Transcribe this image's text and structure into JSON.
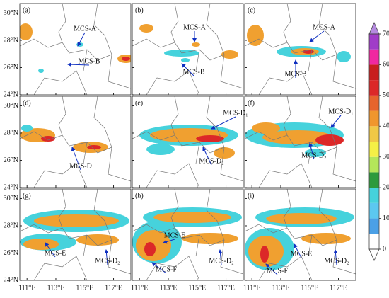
{
  "map": {
    "lon_range": [
      110.5,
      118.2
    ],
    "lat_range": [
      24,
      30.7
    ],
    "lat_ticks": [
      {
        "value": 30,
        "label": "30°N"
      },
      {
        "value": 28,
        "label": "28°N"
      },
      {
        "value": 26,
        "label": "26°N"
      },
      {
        "value": 24,
        "label": "24°N"
      }
    ],
    "lon_ticks": [
      {
        "value": 111,
        "label": "111°E"
      },
      {
        "value": 113,
        "label": "113°E"
      },
      {
        "value": 115,
        "label": "115°E"
      },
      {
        "value": 117,
        "label": "117°E"
      }
    ],
    "panels": [
      {
        "label": "(a)",
        "annotations": [
          "MCS-A",
          "MCS-B"
        ]
      },
      {
        "label": "(b)",
        "annotations": [
          "MCS-A",
          "MCS-B"
        ]
      },
      {
        "label": "(c)",
        "annotations": [
          "MCS-A",
          "MCS-B"
        ]
      },
      {
        "label": "(d)",
        "annotations": [
          "MCS-D"
        ]
      },
      {
        "label": "(e)",
        "annotations": [
          "MCS-D₁",
          "MCS-D₂"
        ]
      },
      {
        "label": "(f)",
        "annotations": [
          "MCS-D₁",
          "MCS-D₂"
        ]
      },
      {
        "label": "(g)",
        "annotations": [
          "MCS-E",
          "MCS-D₂"
        ]
      },
      {
        "label": "(h)",
        "annotations": [
          "MCS-E",
          "MCS-F",
          "MCS-D₂"
        ]
      },
      {
        "label": "(i)",
        "annotations": [
          "MCS-F",
          "MCS-E",
          "MCS-D₂"
        ]
      }
    ],
    "colorbar": {
      "ticks": [
        0,
        10,
        20,
        30,
        40,
        50,
        60,
        70
      ],
      "colors": [
        "#ffffff",
        "#4ba0e6",
        "#5cc8f0",
        "#46d2dc",
        "#2d9a3c",
        "#b4e65a",
        "#f5f046",
        "#f0c846",
        "#f0962d",
        "#e6642d",
        "#dc2828",
        "#c81e1e",
        "#f028a0",
        "#a03cc8"
      ],
      "under": "#ffffff",
      "over": "#b58ae0"
    }
  }
}
